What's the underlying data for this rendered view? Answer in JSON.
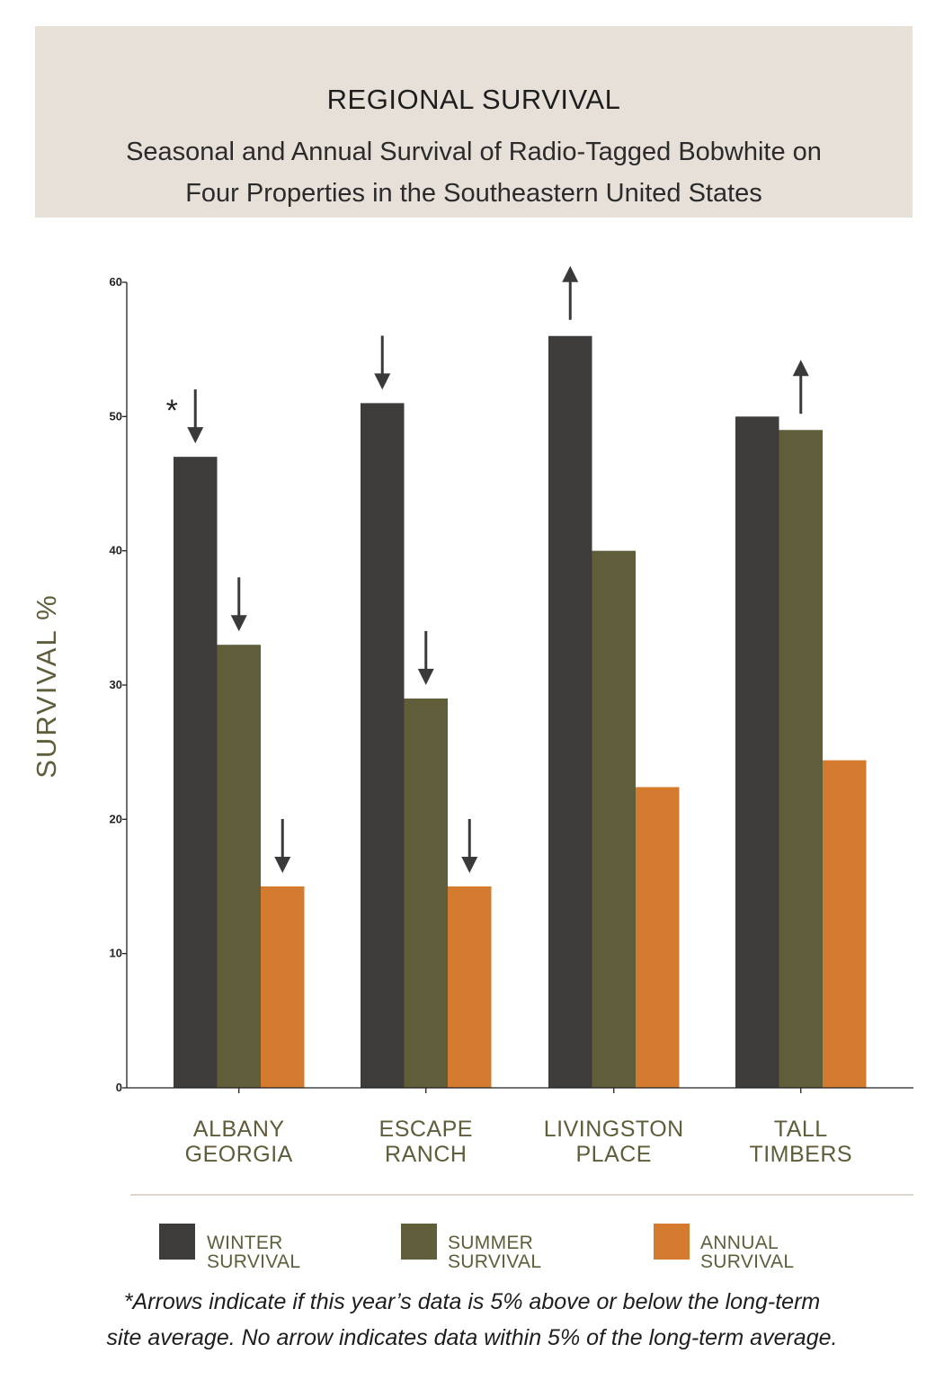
{
  "header": {
    "title": "REGIONAL SURVIVAL",
    "subtitle_line1": "Seasonal and Annual Survival of Radio-Tagged Bobwhite on",
    "subtitle_line2": "Four Properties in the Southeastern United States"
  },
  "colors": {
    "winter": "#3d3c3a",
    "summer": "#5f5d3a",
    "annual": "#d47b2f",
    "axis_label": "#5f5d3a",
    "category_label": "#5f5d3a",
    "arrow": "#3a3a3a",
    "header_bg": "#e7e0d9"
  },
  "chart_data": {
    "type": "bar",
    "title": "",
    "xlabel": "",
    "ylabel": "SURVIVAL %",
    "ylim": [
      0,
      60
    ],
    "yticks": [
      0,
      10,
      20,
      30,
      40,
      50,
      60
    ],
    "categories": [
      "ALBANY GEORGIA",
      "ESCAPE RANCH",
      "LIVINGSTON PLACE",
      "TALL TIMBERS"
    ],
    "category_lines": [
      [
        "ALBANY",
        "GEORGIA"
      ],
      [
        "ESCAPE",
        "RANCH"
      ],
      [
        "LIVINGSTON",
        "PLACE"
      ],
      [
        "TALL",
        "TIMBERS"
      ]
    ],
    "series": [
      {
        "name": "WINTER SURVIVAL",
        "key": "winter",
        "values": [
          47,
          51,
          56,
          50
        ]
      },
      {
        "name": "SUMMER SURVIVAL",
        "key": "summer",
        "values": [
          33,
          29,
          40,
          49
        ]
      },
      {
        "name": "ANNUAL SURVIVAL",
        "key": "annual",
        "values": [
          15,
          15,
          22.4,
          24.4
        ]
      }
    ],
    "arrows": [
      {
        "category": 0,
        "series": 0,
        "direction": "down",
        "asterisk": true
      },
      {
        "category": 0,
        "series": 1,
        "direction": "down"
      },
      {
        "category": 0,
        "series": 2,
        "direction": "down"
      },
      {
        "category": 1,
        "series": 0,
        "direction": "down"
      },
      {
        "category": 1,
        "series": 1,
        "direction": "down"
      },
      {
        "category": 1,
        "series": 2,
        "direction": "down"
      },
      {
        "category": 2,
        "series": 0,
        "direction": "up"
      },
      {
        "category": 3,
        "series": 1,
        "direction": "up"
      }
    ],
    "asterisk_text": "*",
    "legend_position": "bottom"
  },
  "footnote": {
    "line1": "*Arrows indicate if this year’s data is 5% above or below the long-term",
    "line2": "site average. No arrow indicates data within 5% of the long-term average."
  }
}
